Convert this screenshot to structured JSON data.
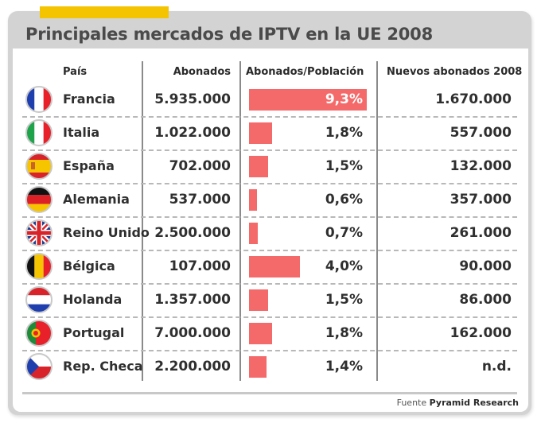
{
  "title": "Principales mercados de IPTV en la UE 2008",
  "source": {
    "label": "Fuente",
    "name": "Pyramid Research"
  },
  "colors": {
    "accent": "#f5c400",
    "bar": "#f46a6a",
    "frame": "#d3d3d3"
  },
  "headers": {
    "country": "País",
    "subscribers": "Abonados",
    "penetration": "Abonados/Población",
    "new_subscribers": "Nuevos abonados 2008"
  },
  "chart_data": {
    "type": "table",
    "title": "Principales mercados de IPTV en la UE 2008",
    "columns": [
      "País",
      "Abonados",
      "Abonados/Población",
      "Nuevos abonados 2008"
    ],
    "bar_column": "Abonados/Población",
    "rows": [
      {
        "country": "Francia",
        "flag": "france-flag-icon",
        "subscribers": "5.935.000",
        "penetration": 9.3,
        "penetration_label": "9,3%",
        "new_subscribers": "1.670.000"
      },
      {
        "country": "Italia",
        "flag": "italy-flag-icon",
        "subscribers": "1.022.000",
        "penetration": 1.8,
        "penetration_label": "1,8%",
        "new_subscribers": "557.000"
      },
      {
        "country": "España",
        "flag": "spain-flag-icon",
        "subscribers": "702.000",
        "penetration": 1.5,
        "penetration_label": "1,5%",
        "new_subscribers": "132.000"
      },
      {
        "country": "Alemania",
        "flag": "germany-flag-icon",
        "subscribers": "537.000",
        "penetration": 0.6,
        "penetration_label": "0,6%",
        "new_subscribers": "357.000"
      },
      {
        "country": "Reino Unido",
        "flag": "uk-flag-icon",
        "subscribers": "2.500.000",
        "penetration": 0.7,
        "penetration_label": "0,7%",
        "new_subscribers": "261.000"
      },
      {
        "country": "Bélgica",
        "flag": "belgium-flag-icon",
        "subscribers": "107.000",
        "penetration": 4.0,
        "penetration_label": "4,0%",
        "new_subscribers": "90.000"
      },
      {
        "country": "Holanda",
        "flag": "netherlands-flag-icon",
        "subscribers": "1.357.000",
        "penetration": 1.5,
        "penetration_label": "1,5%",
        "new_subscribers": "86.000"
      },
      {
        "country": "Portugal",
        "flag": "portugal-flag-icon",
        "subscribers": "7.000.000",
        "penetration": 1.8,
        "penetration_label": "1,8%",
        "new_subscribers": "162.000"
      },
      {
        "country": "Rep. Checa",
        "flag": "czech-flag-icon",
        "subscribers": "2.200.000",
        "penetration": 1.4,
        "penetration_label": "1,4%",
        "new_subscribers": "n.d."
      }
    ]
  }
}
